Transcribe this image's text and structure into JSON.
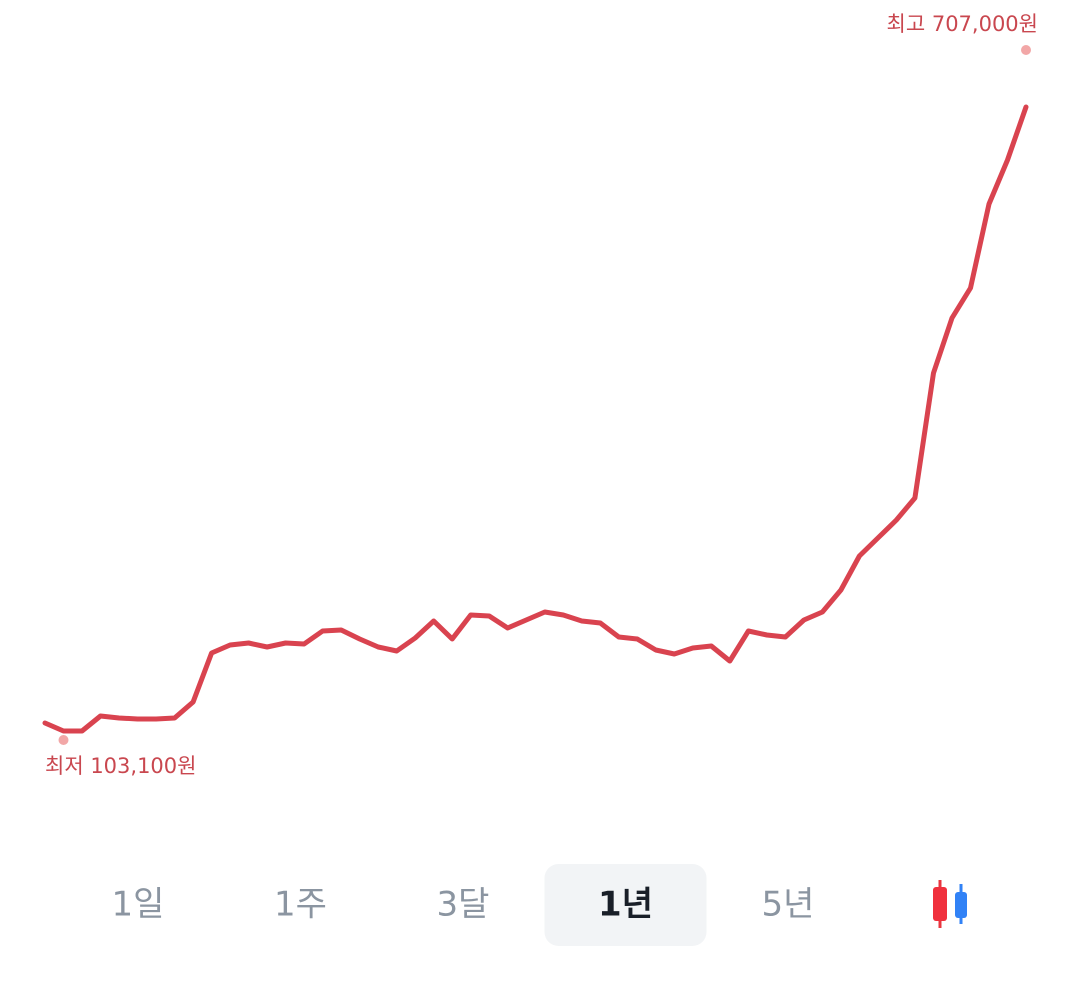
{
  "chart_data": {
    "type": "line",
    "color": "#d9434f",
    "values": [
      110800,
      103100,
      103100,
      117600,
      115700,
      114700,
      114700,
      115700,
      131200,
      178600,
      186300,
      188300,
      184400,
      188300,
      187300,
      199900,
      200800,
      192100,
      184400,
      180500,
      193100,
      209600,
      192100,
      215400,
      214400,
      202800,
      210500,
      218300,
      215400,
      209600,
      207600,
      194100,
      192100,
      181500,
      177600,
      183400,
      185400,
      170800,
      199900,
      196000,
      194100,
      210500,
      218300,
      239600,
      272500,
      289900,
      307300,
      328600,
      449600,
      502800,
      531800,
      613100,
      655700,
      707000
    ],
    "ylim": [
      103100,
      707000
    ],
    "high": {
      "label": "최고 707,000원",
      "value": 707000
    },
    "low": {
      "label": "최저 103,100원",
      "value": 103100
    }
  },
  "periods": [
    "1일",
    "1주",
    "3달",
    "1년",
    "5년"
  ],
  "selected_period": 3
}
